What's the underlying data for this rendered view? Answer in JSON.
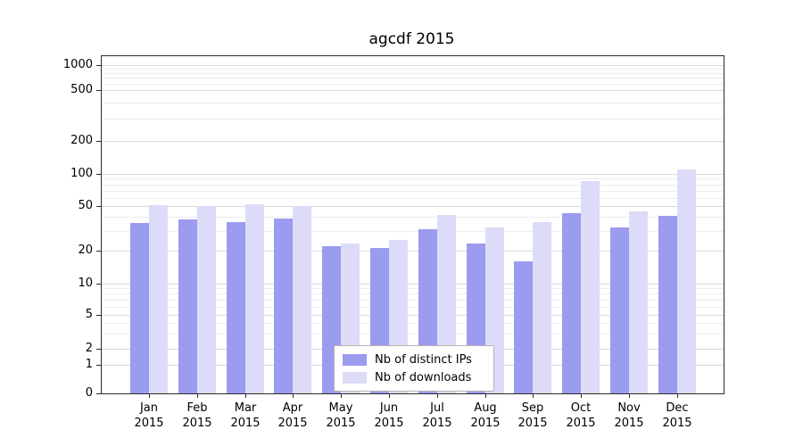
{
  "chart_data": {
    "type": "bar",
    "title": "agcdf 2015",
    "xlabel": "",
    "ylabel": "",
    "year": "2015",
    "categories": [
      "Jan",
      "Feb",
      "Mar",
      "Apr",
      "May",
      "Jun",
      "Jul",
      "Aug",
      "Sep",
      "Oct",
      "Nov",
      "Dec"
    ],
    "series": [
      {
        "name": "Nb of distinct IPs",
        "color": "#9b9bf0",
        "values": [
          35,
          38,
          36,
          39,
          22,
          21,
          31,
          23,
          16,
          43,
          32,
          41
        ]
      },
      {
        "name": "Nb of downloads",
        "color": "#dcdcf8",
        "values": [
          51,
          50,
          52,
          50,
          23,
          25,
          42,
          32,
          36,
          85,
          45,
          110
        ]
      }
    ],
    "yscale": "symlog",
    "y_ticks": [
      0,
      1,
      2,
      5,
      10,
      20,
      50,
      100,
      200,
      500,
      1000
    ],
    "ylim": [
      0,
      1000
    ],
    "grid": true,
    "legend_position": "lower center"
  },
  "colors": {
    "bar_dark": "#9b9bf0",
    "bar_light": "#dcdcf8",
    "grid_major": "#d9d9d9",
    "grid_minor": "#ececec",
    "frame": "#2b2b2b"
  }
}
